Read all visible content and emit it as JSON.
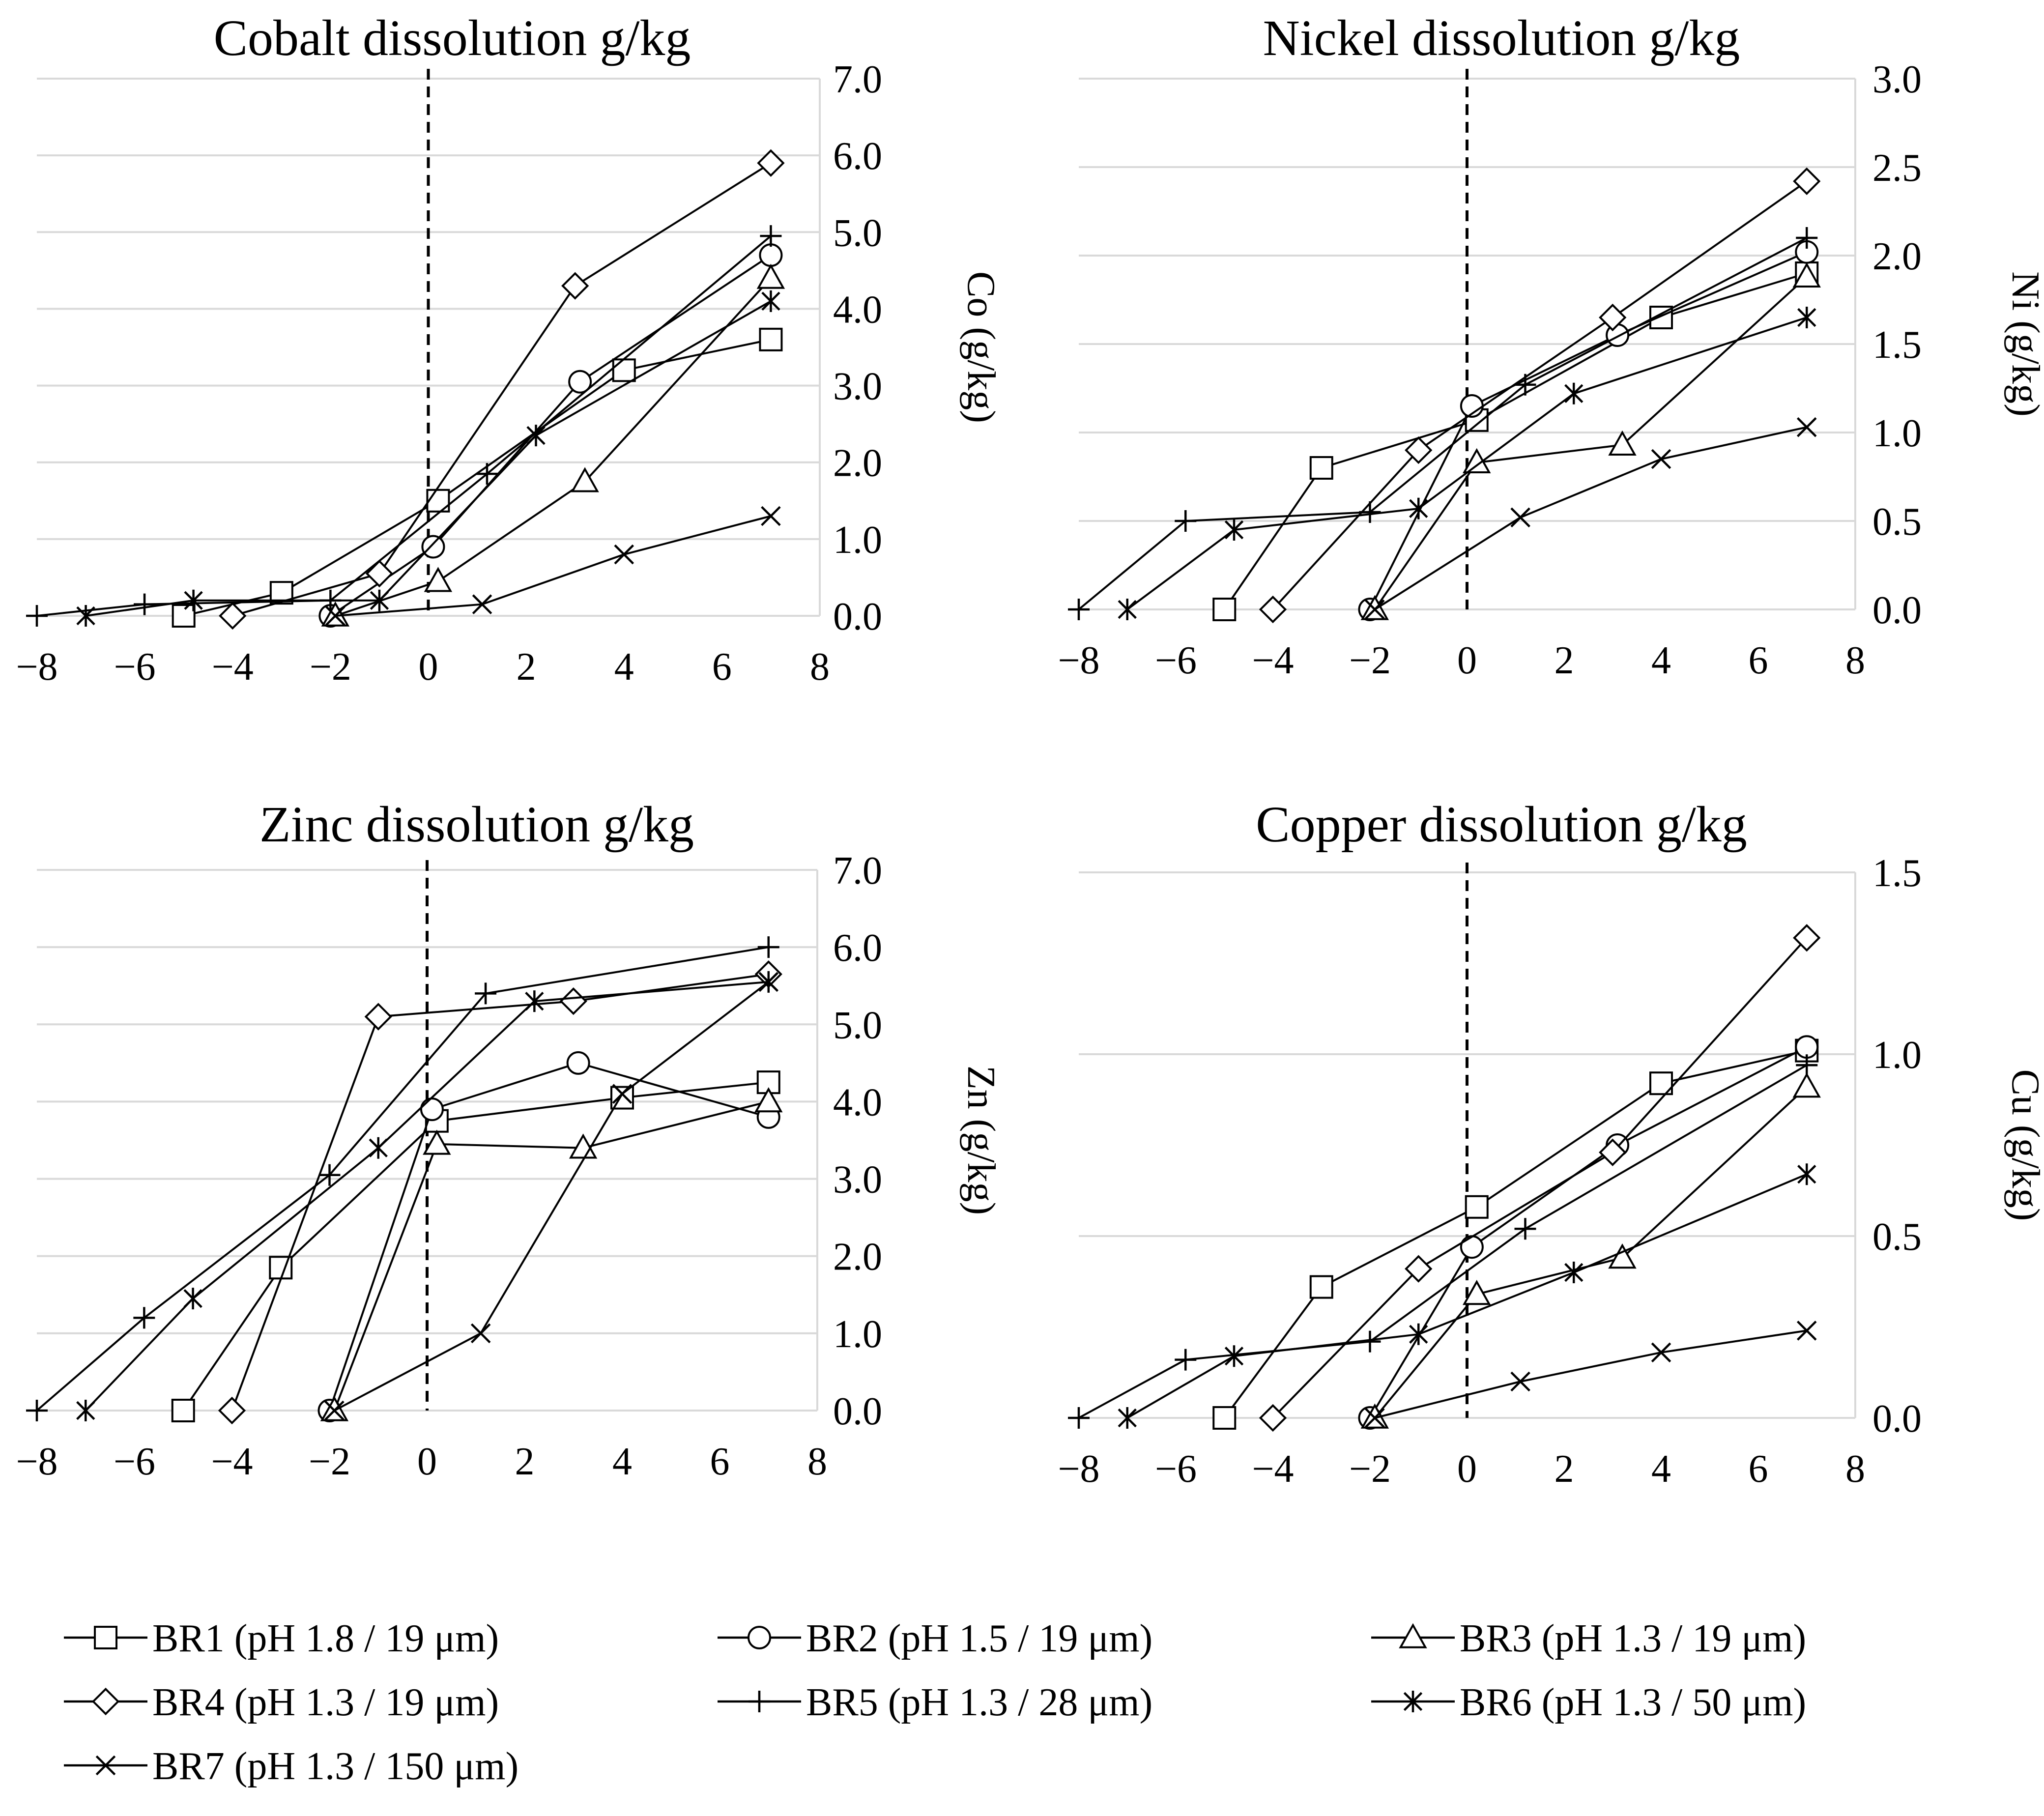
{
  "chart_data": [
    {
      "type": "line",
      "title": "Cobalt dissolution g/kg",
      "ylabel": "Co (g/kg)",
      "xlabel": "",
      "xlim": [
        -8,
        8
      ],
      "ylim": [
        0,
        7
      ],
      "xticks": [
        -8,
        -6,
        -4,
        -2,
        0,
        2,
        4,
        6,
        8
      ],
      "xtick_labels": [
        "−8",
        "−6",
        "−4",
        "−2",
        "0",
        "2",
        "4",
        "6",
        "8"
      ],
      "yticks": [
        0,
        1,
        2,
        3,
        4,
        5,
        6,
        7
      ],
      "ytick_labels": [
        "0.0",
        "1.0",
        "2.0",
        "3.0",
        "4.0",
        "5.0",
        "6.0",
        "7.0"
      ],
      "grid": true,
      "series": [
        {
          "name": "BR1 (pH 1.8 / 19 μm)",
          "points": [
            [
              -5,
              0.0
            ],
            [
              -3,
              0.3
            ],
            [
              0.2,
              1.5
            ],
            [
              4,
              3.2
            ],
            [
              7,
              3.6
            ]
          ]
        },
        {
          "name": "BR2 (pH 1.5 / 19 μm)",
          "points": [
            [
              -2,
              0.0
            ],
            [
              0.1,
              0.9
            ],
            [
              3.1,
              3.05
            ],
            [
              7,
              4.7
            ]
          ]
        },
        {
          "name": "BR3 (pH 1.3 / 19 μm)",
          "points": [
            [
              -1.9,
              0.0
            ],
            [
              0.2,
              0.45
            ],
            [
              3.2,
              1.75
            ],
            [
              7,
              4.4
            ]
          ]
        },
        {
          "name": "BR4 (pH 1.3 / 19 μm)",
          "points": [
            [
              -4,
              0.0
            ],
            [
              -1,
              0.55
            ],
            [
              3,
              4.3
            ],
            [
              7,
              5.9
            ]
          ]
        },
        {
          "name": "BR5 (pH 1.3 / 28 μm)",
          "points": [
            [
              -8,
              0.0
            ],
            [
              -5.8,
              0.15
            ],
            [
              -2,
              0.2
            ],
            [
              1.2,
              1.85
            ],
            [
              7,
              4.95
            ]
          ]
        },
        {
          "name": "BR6 (pH 1.3 / 50 μm)",
          "points": [
            [
              -7,
              0.0
            ],
            [
              -4.8,
              0.2
            ],
            [
              -1,
              0.2
            ],
            [
              2.2,
              2.35
            ],
            [
              7,
              4.1
            ]
          ]
        },
        {
          "name": "BR7 (pH 1.3 / 150 μm)",
          "points": [
            [
              -1.9,
              0.0
            ],
            [
              1.1,
              0.15
            ],
            [
              4,
              0.8
            ],
            [
              7,
              1.3
            ]
          ]
        }
      ]
    },
    {
      "type": "line",
      "title": "Nickel dissolution g/kg",
      "ylabel": "Ni (g/kg)",
      "xlabel": "",
      "xlim": [
        -8,
        8
      ],
      "ylim": [
        0,
        3
      ],
      "xticks": [
        -8,
        -6,
        -4,
        -2,
        0,
        2,
        4,
        6,
        8
      ],
      "xtick_labels": [
        "−8",
        "−6",
        "−4",
        "−2",
        "0",
        "2",
        "4",
        "6",
        "8"
      ],
      "yticks": [
        0,
        0.5,
        1,
        1.5,
        2,
        2.5,
        3
      ],
      "ytick_labels": [
        "0.0",
        "0.5",
        "1.0",
        "1.5",
        "2.0",
        "2.5",
        "3.0"
      ],
      "grid": true,
      "series": [
        {
          "name": "BR1 (pH 1.8 / 19 μm)",
          "points": [
            [
              -5,
              0.0
            ],
            [
              -3,
              0.8
            ],
            [
              0.2,
              1.07
            ],
            [
              4,
              1.65
            ],
            [
              7,
              1.9
            ]
          ]
        },
        {
          "name": "BR2 (pH 1.5 / 19 μm)",
          "points": [
            [
              -2,
              0.0
            ],
            [
              0.1,
              1.15
            ],
            [
              3.1,
              1.55
            ],
            [
              7,
              2.02
            ]
          ]
        },
        {
          "name": "BR3 (pH 1.3 / 19 μm)",
          "points": [
            [
              -1.9,
              0.0
            ],
            [
              0.2,
              0.83
            ],
            [
              3.2,
              0.93
            ],
            [
              7,
              1.88
            ]
          ]
        },
        {
          "name": "BR4 (pH 1.3 / 19 μm)",
          "points": [
            [
              -4,
              0.0
            ],
            [
              -1,
              0.9
            ],
            [
              3,
              1.65
            ],
            [
              7,
              2.42
            ]
          ]
        },
        {
          "name": "BR5 (pH 1.3 / 28 μm)",
          "points": [
            [
              -8,
              0.0
            ],
            [
              -5.8,
              0.5
            ],
            [
              -2,
              0.55
            ],
            [
              1.2,
              1.27
            ],
            [
              7,
              2.1
            ]
          ]
        },
        {
          "name": "BR6 (pH 1.3 / 50 μm)",
          "points": [
            [
              -7,
              0.0
            ],
            [
              -4.8,
              0.45
            ],
            [
              -1,
              0.57
            ],
            [
              2.2,
              1.22
            ],
            [
              7,
              1.65
            ]
          ]
        },
        {
          "name": "BR7 (pH 1.3 / 150 μm)",
          "points": [
            [
              -1.9,
              0.0
            ],
            [
              1.1,
              0.52
            ],
            [
              4,
              0.85
            ],
            [
              7,
              1.03
            ]
          ]
        }
      ]
    },
    {
      "type": "line",
      "title": "Zinc dissolution g/kg",
      "ylabel": "Zn (g/kg)",
      "xlabel": "",
      "xlim": [
        -8,
        8
      ],
      "ylim": [
        0,
        7
      ],
      "xticks": [
        -8,
        -6,
        -4,
        -2,
        0,
        2,
        4,
        6,
        8
      ],
      "xtick_labels": [
        "−8",
        "−6",
        "−4",
        "−2",
        "0",
        "2",
        "4",
        "6",
        "8"
      ],
      "yticks": [
        0,
        1,
        2,
        3,
        4,
        5,
        6,
        7
      ],
      "ytick_labels": [
        "0.0",
        "1.0",
        "2.0",
        "3.0",
        "4.0",
        "5.0",
        "6.0",
        "7.0"
      ],
      "grid": true,
      "series": [
        {
          "name": "BR1 (pH 1.8 / 19 μm)",
          "points": [
            [
              -5,
              0.0
            ],
            [
              -3,
              1.85
            ],
            [
              0.2,
              3.75
            ],
            [
              4,
              4.05
            ],
            [
              7,
              4.25
            ]
          ]
        },
        {
          "name": "BR2 (pH 1.5 / 19 μm)",
          "points": [
            [
              -2,
              0.0
            ],
            [
              0.1,
              3.9
            ],
            [
              3.1,
              4.5
            ],
            [
              7,
              3.8
            ]
          ]
        },
        {
          "name": "BR3 (pH 1.3 / 19 μm)",
          "points": [
            [
              -1.9,
              0.0
            ],
            [
              0.2,
              3.45
            ],
            [
              3.2,
              3.4
            ],
            [
              7,
              4.0
            ]
          ]
        },
        {
          "name": "BR4 (pH 1.3 / 19 μm)",
          "points": [
            [
              -4,
              0.0
            ],
            [
              -1,
              5.1
            ],
            [
              3,
              5.3
            ],
            [
              7,
              5.65
            ]
          ]
        },
        {
          "name": "BR5 (pH 1.3 / 28 μm)",
          "points": [
            [
              -8,
              0.0
            ],
            [
              -5.8,
              1.2
            ],
            [
              -2,
              3.05
            ],
            [
              1.2,
              5.4
            ],
            [
              7,
              6.0
            ]
          ]
        },
        {
          "name": "BR6 (pH 1.3 / 50 μm)",
          "points": [
            [
              -7,
              0.0
            ],
            [
              -4.8,
              1.45
            ],
            [
              -1,
              3.4
            ],
            [
              2.2,
              5.3
            ],
            [
              7,
              5.55
            ]
          ]
        },
        {
          "name": "BR7 (pH 1.3 / 150 μm)",
          "points": [
            [
              -1.9,
              0.0
            ],
            [
              1.1,
              1.0
            ],
            [
              4,
              4.1
            ],
            [
              7,
              5.55
            ]
          ]
        }
      ]
    },
    {
      "type": "line",
      "title": "Copper dissolution g/kg",
      "ylabel": "Cu (g/kg)",
      "xlabel": "",
      "xlim": [
        -8,
        8
      ],
      "ylim": [
        0,
        1.5
      ],
      "xticks": [
        -8,
        -6,
        -4,
        -2,
        0,
        2,
        4,
        6,
        8
      ],
      "xtick_labels": [
        "−8",
        "−6",
        "−4",
        "−2",
        "0",
        "2",
        "4",
        "6",
        "8"
      ],
      "yticks": [
        0,
        0.5,
        1,
        1.5
      ],
      "ytick_labels": [
        "0.0",
        "0.5",
        "1.0",
        "1.5"
      ],
      "grid": true,
      "series": [
        {
          "name": "BR1 (pH 1.8 / 19 μm)",
          "points": [
            [
              -5,
              0.0
            ],
            [
              -3,
              0.36
            ],
            [
              0.2,
              0.58
            ],
            [
              4,
              0.92
            ],
            [
              7,
              1.01
            ]
          ]
        },
        {
          "name": "BR2 (pH 1.5 / 19 μm)",
          "points": [
            [
              -2,
              0.0
            ],
            [
              0.1,
              0.47
            ],
            [
              3.1,
              0.75
            ],
            [
              7,
              1.02
            ]
          ]
        },
        {
          "name": "BR3 (pH 1.3 / 19 μm)",
          "points": [
            [
              -1.9,
              0.0
            ],
            [
              0.2,
              0.34
            ],
            [
              3.2,
              0.44
            ],
            [
              7,
              0.91
            ]
          ]
        },
        {
          "name": "BR4 (pH 1.3 / 19 μm)",
          "points": [
            [
              -4,
              0.0
            ],
            [
              -1,
              0.41
            ],
            [
              3,
              0.73
            ],
            [
              7,
              1.32
            ]
          ]
        },
        {
          "name": "BR5 (pH 1.3 / 28 μm)",
          "points": [
            [
              -8,
              0.0
            ],
            [
              -5.8,
              0.16
            ],
            [
              -2,
              0.21
            ],
            [
              1.2,
              0.52
            ],
            [
              7,
              0.97
            ]
          ]
        },
        {
          "name": "BR6 (pH 1.3 / 50 μm)",
          "points": [
            [
              -7,
              0.0
            ],
            [
              -4.8,
              0.17
            ],
            [
              -1,
              0.23
            ],
            [
              2.2,
              0.4
            ],
            [
              7,
              0.67
            ]
          ]
        },
        {
          "name": "BR7 (pH 1.3 / 150 μm)",
          "points": [
            [
              -1.9,
              0.0
            ],
            [
              1.1,
              0.1
            ],
            [
              4,
              0.18
            ],
            [
              7,
              0.24
            ]
          ]
        }
      ]
    }
  ],
  "legend": {
    "placement": "bottom",
    "items": [
      {
        "label": "BR1 (pH 1.8 / 19 μm)",
        "marker": "square-marker"
      },
      {
        "label": "BR2 (pH 1.5 / 19 μm)",
        "marker": "circle-marker"
      },
      {
        "label": "BR3 (pH 1.3 / 19 μm)",
        "marker": "triangle-marker"
      },
      {
        "label": "BR4 (pH 1.3 / 19 μm)",
        "marker": "diamond-marker"
      },
      {
        "label": "BR5 (pH 1.3 / 28 μm)",
        "marker": "plus-marker"
      },
      {
        "label": "BR6 (pH 1.3 / 50 μm)",
        "marker": "asterisk-marker"
      },
      {
        "label": "BR7 (pH 1.3 / 150 μm)",
        "marker": "x-marker"
      }
    ]
  },
  "colors": {
    "line": "#000000",
    "grid": "#d9d9d9",
    "background": "#ffffff"
  }
}
